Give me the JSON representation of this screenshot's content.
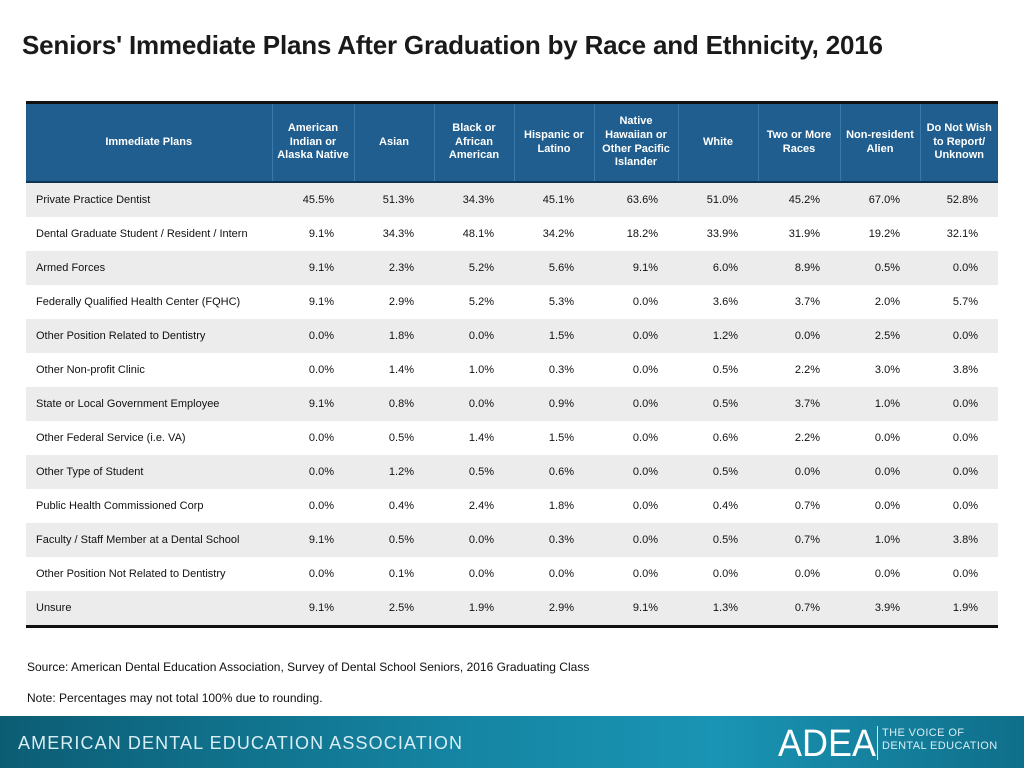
{
  "title": "Seniors' Immediate Plans After Graduation by Race and Ethnicity, 2016",
  "table": {
    "headers": [
      "Immediate Plans",
      "American Indian or Alaska Native",
      "Asian",
      "Black or African American",
      "Hispanic or Latino",
      "Native Hawaiian or Other Pacific Islander",
      "White",
      "Two or More Races",
      "Non-resident Alien",
      "Do Not Wish to Report/ Unknown"
    ],
    "rows": [
      [
        "Private Practice Dentist",
        "45.5%",
        "51.3%",
        "34.3%",
        "45.1%",
        "63.6%",
        "51.0%",
        "45.2%",
        "67.0%",
        "52.8%"
      ],
      [
        "Dental Graduate Student / Resident / Intern",
        "9.1%",
        "34.3%",
        "48.1%",
        "34.2%",
        "18.2%",
        "33.9%",
        "31.9%",
        "19.2%",
        "32.1%"
      ],
      [
        "Armed Forces",
        "9.1%",
        "2.3%",
        "5.2%",
        "5.6%",
        "9.1%",
        "6.0%",
        "8.9%",
        "0.5%",
        "0.0%"
      ],
      [
        "Federally Qualified Health Center (FQHC)",
        "9.1%",
        "2.9%",
        "5.2%",
        "5.3%",
        "0.0%",
        "3.6%",
        "3.7%",
        "2.0%",
        "5.7%"
      ],
      [
        "Other Position Related to Dentistry",
        "0.0%",
        "1.8%",
        "0.0%",
        "1.5%",
        "0.0%",
        "1.2%",
        "0.0%",
        "2.5%",
        "0.0%"
      ],
      [
        "Other Non-profit Clinic",
        "0.0%",
        "1.4%",
        "1.0%",
        "0.3%",
        "0.0%",
        "0.5%",
        "2.2%",
        "3.0%",
        "3.8%"
      ],
      [
        "State or Local Government Employee",
        "9.1%",
        "0.8%",
        "0.0%",
        "0.9%",
        "0.0%",
        "0.5%",
        "3.7%",
        "1.0%",
        "0.0%"
      ],
      [
        "Other Federal Service (i.e. VA)",
        "0.0%",
        "0.5%",
        "1.4%",
        "1.5%",
        "0.0%",
        "0.6%",
        "2.2%",
        "0.0%",
        "0.0%"
      ],
      [
        "Other Type of  Student",
        "0.0%",
        "1.2%",
        "0.5%",
        "0.6%",
        "0.0%",
        "0.5%",
        "0.0%",
        "0.0%",
        "0.0%"
      ],
      [
        "Public Health Commissioned Corp",
        "0.0%",
        "0.4%",
        "2.4%",
        "1.8%",
        "0.0%",
        "0.4%",
        "0.7%",
        "0.0%",
        "0.0%"
      ],
      [
        "Faculty / Staff Member at a Dental School",
        "9.1%",
        "0.5%",
        "0.0%",
        "0.3%",
        "0.0%",
        "0.5%",
        "0.7%",
        "1.0%",
        "3.8%"
      ],
      [
        "Other Position Not Related to Dentistry",
        "0.0%",
        "0.1%",
        "0.0%",
        "0.0%",
        "0.0%",
        "0.0%",
        "0.0%",
        "0.0%",
        "0.0%"
      ],
      [
        "Unsure",
        "9.1%",
        "2.5%",
        "1.9%",
        "2.9%",
        "9.1%",
        "1.3%",
        "0.7%",
        "3.9%",
        "1.9%"
      ]
    ]
  },
  "source": "Source: American Dental Education Association, Survey of Dental School Seniors, 2016 Graduating Class",
  "note": "Note: Percentages may not total 100% due to rounding.",
  "footer": {
    "org_name": "AMERICAN DENTAL EDUCATION ASSOCIATION",
    "logo_text": "ADEA",
    "tagline_line1": "THE VOICE OF",
    "tagline_line2": "DENTAL EDUCATION"
  },
  "colors": {
    "header_bg": "#1f5e8e",
    "stripe": "#ececec",
    "footer_teal": "#1585a3"
  }
}
